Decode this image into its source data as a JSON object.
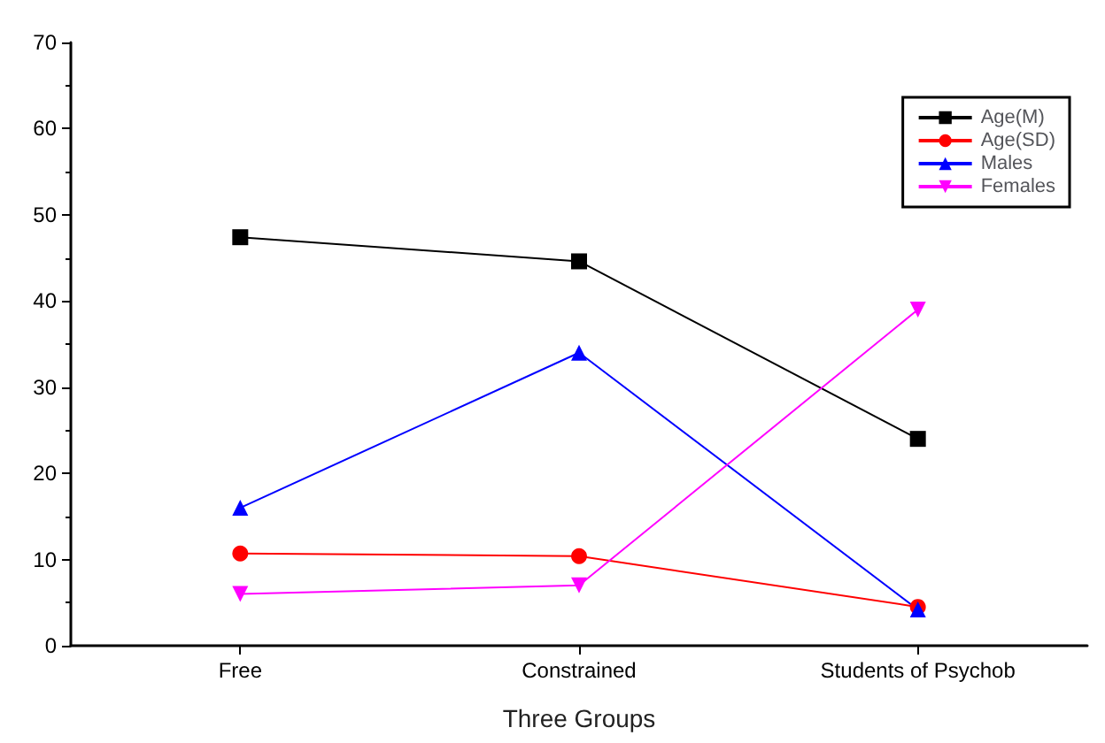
{
  "chart_data": {
    "type": "line",
    "xlabel": "Three Groups",
    "categories": [
      "Free",
      "Constrained",
      "Students of Psychob"
    ],
    "series": [
      {
        "name": "Age(M)",
        "color": "#000000",
        "marker": "square",
        "values": [
          47.4,
          44.6,
          24.0
        ]
      },
      {
        "name": "Age(SD)",
        "color": "#ff0000",
        "marker": "circle",
        "values": [
          10.7,
          10.4,
          4.5
        ]
      },
      {
        "name": "Males",
        "color": "#0000ff",
        "marker": "triangle",
        "values": [
          16,
          34,
          4.2
        ]
      },
      {
        "name": "Females",
        "color": "#ff00ff",
        "marker": "triangle-down",
        "values": [
          6,
          7,
          39
        ]
      }
    ],
    "ylim": [
      0,
      70
    ],
    "yticks": [
      0,
      10,
      20,
      30,
      40,
      50,
      60,
      70
    ],
    "grid": false,
    "legend": "top right"
  }
}
